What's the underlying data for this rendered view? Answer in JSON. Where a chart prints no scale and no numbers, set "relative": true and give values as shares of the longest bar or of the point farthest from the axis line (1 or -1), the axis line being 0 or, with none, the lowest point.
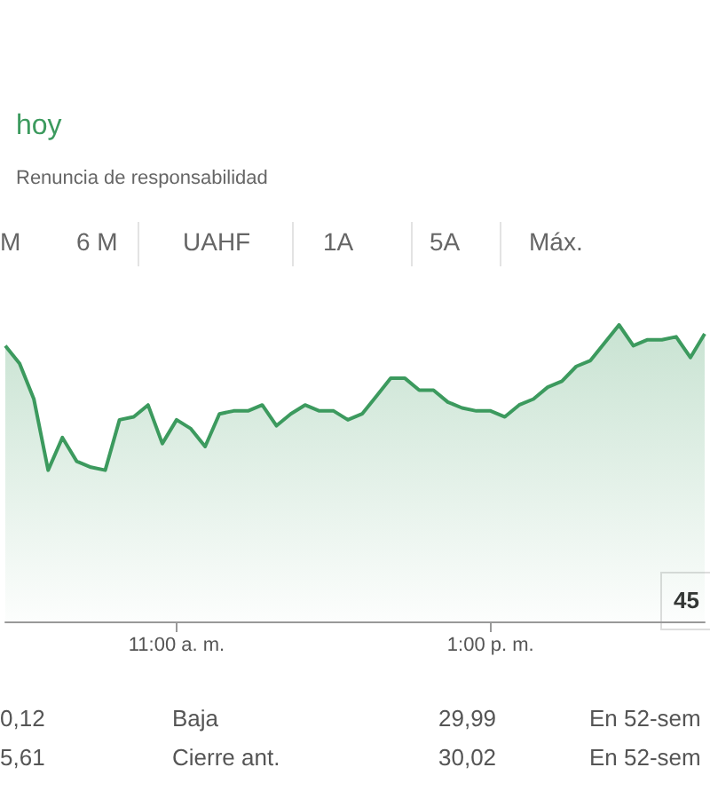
{
  "chart_data": {
    "type": "area",
    "title": "hoy",
    "subtitle": "Renuncia de responsabilidad",
    "relative": true,
    "color": "#3c9a5e",
    "categories": [
      null,
      null,
      null,
      null,
      null,
      null,
      null,
      null,
      null,
      null,
      null,
      null,
      "11:00 a. m.",
      null,
      null,
      null,
      null,
      null,
      null,
      null,
      null,
      null,
      null,
      null,
      null,
      null,
      null,
      null,
      null,
      null,
      null,
      null,
      null,
      null,
      "1:00 p. m.",
      null,
      null,
      null,
      null,
      null,
      null,
      null,
      null,
      null,
      null,
      null,
      null,
      null,
      null,
      null
    ],
    "values": [
      0.93,
      0.87,
      0.75,
      0.51,
      0.62,
      0.54,
      0.52,
      0.51,
      0.68,
      0.69,
      0.73,
      0.6,
      0.68,
      0.65,
      0.59,
      0.7,
      0.71,
      0.71,
      0.73,
      0.66,
      0.7,
      0.73,
      0.71,
      0.71,
      0.68,
      0.7,
      0.76,
      0.82,
      0.82,
      0.78,
      0.78,
      0.74,
      0.72,
      0.71,
      0.71,
      0.69,
      0.73,
      0.75,
      0.79,
      0.81,
      0.86,
      0.88,
      0.94,
      1,
      0.93,
      0.95,
      0.95,
      0.96,
      0.89,
      0.97
    ],
    "grid": false,
    "marker": "none",
    "annotations": [
      "M",
      "6 M",
      "UAHF",
      "1A",
      "5A",
      "Máx.",
      "0,12",
      "Baja",
      "29,99",
      "En 52-sem",
      "5,61",
      "Cierre ant.",
      "30,02",
      "En 52-sem",
      "45"
    ]
  }
}
